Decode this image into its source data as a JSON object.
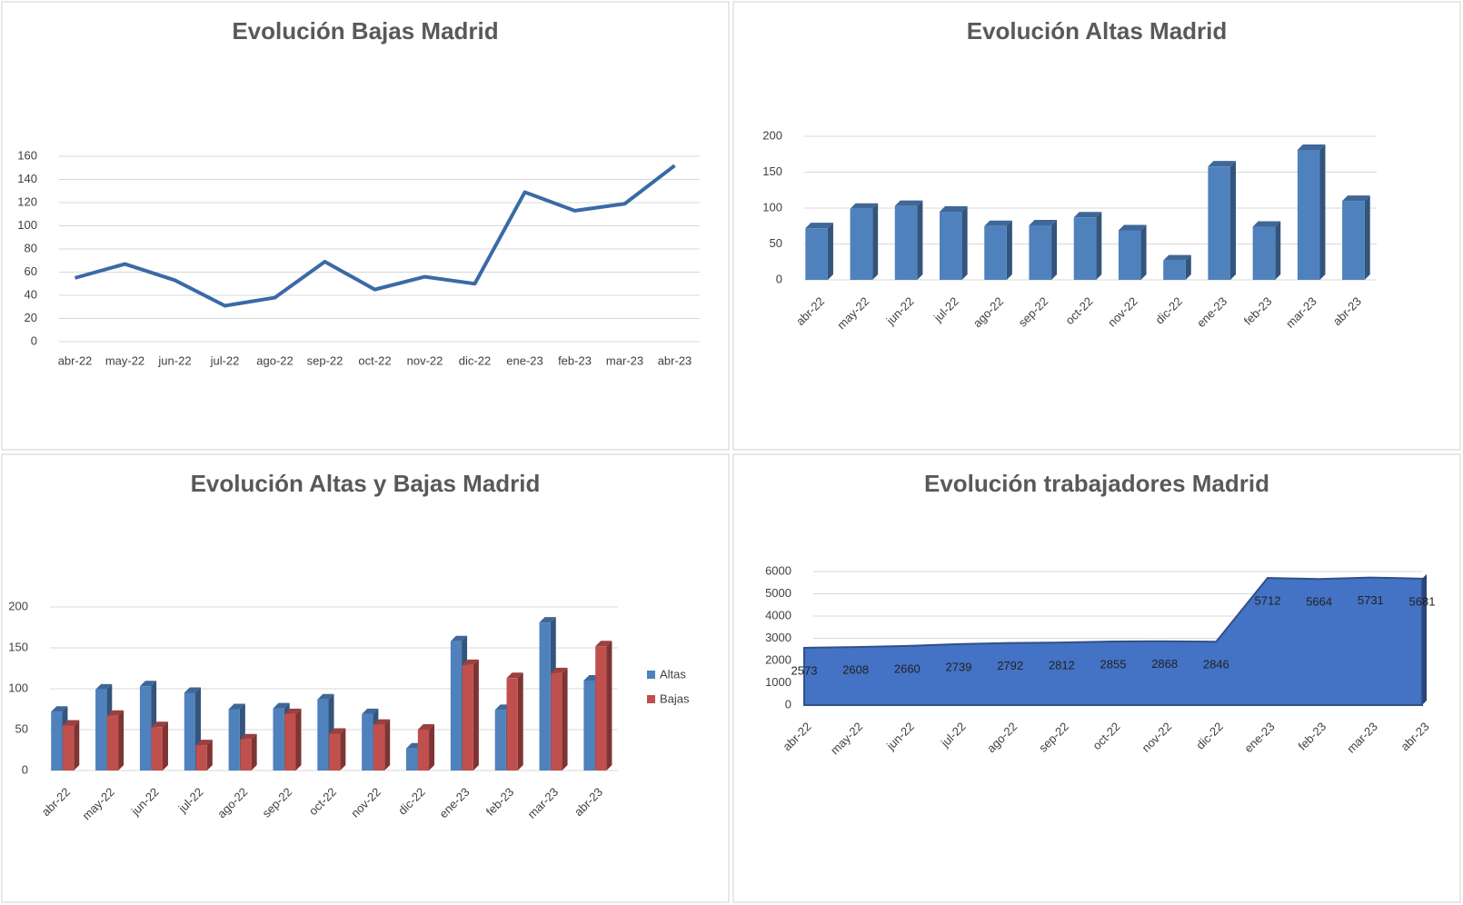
{
  "chart_data": [
    {
      "type": "line",
      "title": "Evolución Bajas Madrid",
      "categories": [
        "abr-22",
        "may-22",
        "jun-22",
        "jul-22",
        "ago-22",
        "sep-22",
        "oct-22",
        "nov-22",
        "dic-22",
        "ene-23",
        "feb-23",
        "mar-23",
        "abr-23"
      ],
      "values": [
        55,
        67,
        53,
        31,
        38,
        69,
        45,
        56,
        50,
        129,
        113,
        119,
        152
      ],
      "color": "#3a6aa6",
      "ylim": [
        0,
        160
      ],
      "yticks": [
        0,
        20,
        40,
        60,
        80,
        100,
        120,
        140,
        160
      ],
      "grid": true
    },
    {
      "type": "bar",
      "title": "Evolución  Altas Madrid",
      "categories": [
        "abr-22",
        "may-22",
        "jun-22",
        "jul-22",
        "ago-22",
        "sep-22",
        "oct-22",
        "nov-22",
        "dic-22",
        "ene-23",
        "feb-23",
        "mar-23",
        "abr-23"
      ],
      "values": [
        72,
        99,
        103,
        95,
        75,
        76,
        87,
        69,
        27,
        158,
        74,
        181,
        110
      ],
      "color": "#4f81bd",
      "ylim": [
        0,
        200
      ],
      "yticks": [
        0,
        50,
        100,
        150,
        200
      ],
      "grid": true
    },
    {
      "type": "bar",
      "title": "Evolución Altas y Bajas Madrid",
      "categories": [
        "abr-22",
        "may-22",
        "jun-22",
        "jul-22",
        "ago-22",
        "sep-22",
        "oct-22",
        "nov-22",
        "dic-22",
        "ene-23",
        "feb-23",
        "mar-23",
        "abr-23"
      ],
      "series": [
        {
          "name": "Altas",
          "color": "#4f81bd",
          "values": [
            72,
            99,
            103,
            95,
            75,
            76,
            87,
            69,
            27,
            158,
            74,
            181,
            110
          ]
        },
        {
          "name": "Bajas",
          "color": "#c0504d",
          "values": [
            55,
            67,
            53,
            31,
            38,
            69,
            45,
            56,
            50,
            129,
            113,
            119,
            152
          ]
        }
      ],
      "ylim": [
        0,
        200
      ],
      "yticks": [
        0,
        50,
        100,
        150,
        200
      ],
      "grid": true,
      "legend": "right"
    },
    {
      "type": "area",
      "title": "Evolución trabajadores Madrid",
      "categories": [
        "abr-22",
        "may-22",
        "jun-22",
        "jul-22",
        "ago-22",
        "sep-22",
        "oct-22",
        "nov-22",
        "dic-22",
        "ene-23",
        "feb-23",
        "mar-23",
        "abr-23"
      ],
      "values": [
        2573,
        2608,
        2660,
        2739,
        2792,
        2812,
        2855,
        2868,
        2846,
        5712,
        5664,
        5731,
        5681
      ],
      "color": "#4472c4",
      "ylim": [
        0,
        6000
      ],
      "yticks": [
        0,
        1000,
        2000,
        3000,
        4000,
        5000,
        6000
      ],
      "grid": true
    }
  ]
}
